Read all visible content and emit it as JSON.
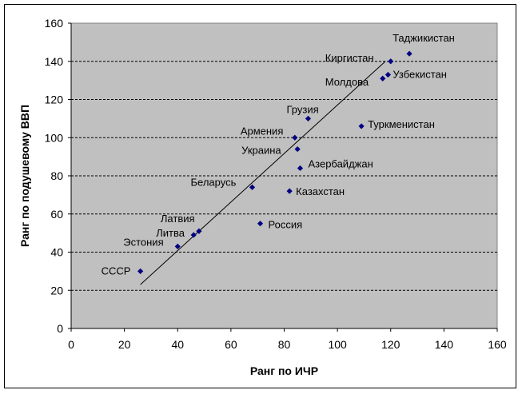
{
  "chart_data": {
    "type": "scatter",
    "xlabel": "Ранг по ИЧР",
    "ylabel": "Ранг по подушевому ВВП",
    "xlim": [
      0,
      160
    ],
    "ylim": [
      0,
      160
    ],
    "xticks": [
      "0",
      "20",
      "40",
      "60",
      "80",
      "100",
      "120",
      "140",
      "160"
    ],
    "yticks": [
      "0",
      "20",
      "40",
      "60",
      "80",
      "100",
      "120",
      "140",
      "160"
    ],
    "grid": "horizontal dashed",
    "legend": "none",
    "colors": {
      "plot_bg": "#c0c0c0",
      "marker": "#000080",
      "trendline": "#000000"
    },
    "points": [
      {
        "label": "СССР",
        "x": 26,
        "y": 30
      },
      {
        "label": "Эстония",
        "x": 40,
        "y": 43
      },
      {
        "label": "Литва",
        "x": 46,
        "y": 49
      },
      {
        "label": "Латвия",
        "x": 48,
        "y": 51
      },
      {
        "label": "Беларусь",
        "x": 68,
        "y": 74
      },
      {
        "label": "Россия",
        "x": 71,
        "y": 55
      },
      {
        "label": "Казахстан",
        "x": 82,
        "y": 72
      },
      {
        "label": "Армения",
        "x": 84,
        "y": 100
      },
      {
        "label": "Украина",
        "x": 85,
        "y": 94
      },
      {
        "label": "Азербайджан",
        "x": 86,
        "y": 84
      },
      {
        "label": "Грузия",
        "x": 89,
        "y": 110
      },
      {
        "label": "Туркменистан",
        "x": 109,
        "y": 106
      },
      {
        "label": "Молдова",
        "x": 117,
        "y": 131
      },
      {
        "label": "Узбекистан",
        "x": 119,
        "y": 133
      },
      {
        "label": "Киргистан",
        "x": 120,
        "y": 140
      },
      {
        "label": "Таджикистан",
        "x": 127,
        "y": 144
      }
    ],
    "trendline": {
      "x": [
        26,
        118
      ],
      "y": [
        23,
        140
      ]
    }
  }
}
